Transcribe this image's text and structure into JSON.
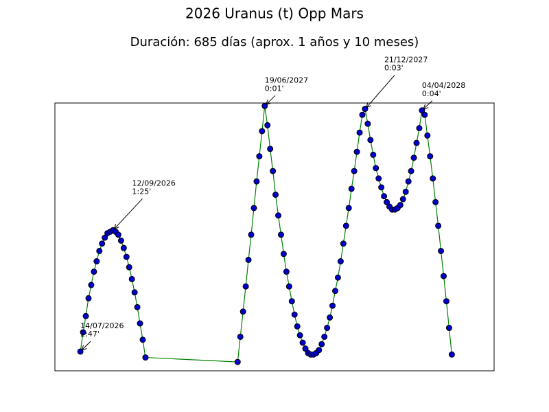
{
  "chart_data": {
    "type": "line",
    "title": "2026 Uranus (t) Opp Mars",
    "subtitle": "Duración: 685 días (aprox. 1 años y 10 meses)",
    "x": [
      0,
      5,
      10,
      15,
      20,
      25,
      30,
      35,
      40,
      45,
      50,
      55,
      60,
      65,
      70,
      75,
      80,
      85,
      90,
      95,
      100,
      105,
      110,
      115,
      120,
      290,
      295,
      300,
      305,
      310,
      315,
      320,
      325,
      330,
      335,
      340,
      345,
      350,
      355,
      360,
      365,
      370,
      375,
      380,
      385,
      390,
      395,
      400,
      405,
      410,
      415,
      420,
      425,
      430,
      435,
      440,
      445,
      450,
      455,
      460,
      465,
      470,
      475,
      480,
      485,
      490,
      495,
      500,
      505,
      510,
      515,
      520,
      525,
      530,
      535,
      540,
      545,
      550,
      555,
      560,
      565,
      570,
      575,
      580,
      585,
      590,
      595,
      600,
      605,
      610,
      615,
      620,
      625,
      630,
      635,
      640,
      645,
      650,
      655,
      660,
      665,
      670,
      675,
      680,
      685
    ],
    "series": [
      {
        "color": "#0000cc",
        "line_color": "#008000",
        "values": [
          167,
          154,
          143,
          131,
          122,
          113,
          106,
          99,
          94,
          90,
          87,
          86,
          85,
          86,
          88,
          92,
          97,
          103,
          110,
          118,
          127,
          137,
          148,
          159,
          171,
          174,
          157,
          140,
          123,
          105,
          88,
          70,
          52,
          35,
          18,
          1,
          14,
          30,
          45,
          61,
          75,
          88,
          101,
          113,
          123,
          133,
          142,
          150,
          156,
          161,
          165,
          168,
          169,
          169,
          168,
          166,
          162,
          157,
          151,
          144,
          136,
          126,
          117,
          106,
          94,
          82,
          70,
          57,
          45,
          32,
          19,
          7,
          3,
          13,
          24,
          34,
          43,
          50,
          56,
          62,
          66,
          69,
          71,
          71,
          70,
          68,
          64,
          59,
          52,
          45,
          36,
          26,
          16,
          4,
          7,
          21,
          35,
          50,
          66,
          82,
          99,
          116,
          133,
          151,
          169
        ]
      }
    ],
    "xlim": [
      -47,
      763
    ],
    "ylim": [
      180,
      -1
    ],
    "annotations": [
      {
        "date": "14/07/2026",
        "label": "2:47'",
        "x": 0,
        "y": 167
      },
      {
        "date": "12/09/2026",
        "label": "1:25'",
        "x": 60,
        "y": 85
      },
      {
        "date": "19/06/2027",
        "label": "0:01'",
        "x": 340,
        "y": 1
      },
      {
        "date": "21/12/2027",
        "label": "0:03'",
        "x": 525,
        "y": 3
      },
      {
        "date": "04/04/2028",
        "label": "0:04'",
        "x": 630,
        "y": 4
      }
    ]
  }
}
